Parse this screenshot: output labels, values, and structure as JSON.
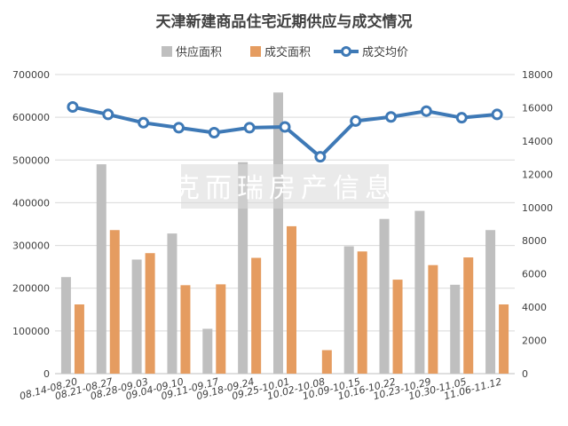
{
  "chart_data": {
    "type": "bar",
    "title": "天津新建商品住宅近期供应与成交情况",
    "categories": [
      "08.14-08.20",
      "08.21-08.27",
      "08.28-09.03",
      "09.04-09.10",
      "09.11-09.17",
      "09.18-09.24",
      "09.25-10.01",
      "10.02-10.08",
      "10.09-10.15",
      "10.16-10.22",
      "10.23-10.29",
      "10.30-11.05",
      "11.06-11.12"
    ],
    "series": [
      {
        "name": "供应面积",
        "type": "bar",
        "axis": "left",
        "color": "#bfbfbf",
        "values": [
          226000,
          490000,
          267000,
          328000,
          105000,
          495000,
          658000,
          0,
          298000,
          362000,
          381000,
          208000,
          336000
        ]
      },
      {
        "name": "成交面积",
        "type": "bar",
        "axis": "left",
        "color": "#e59c60",
        "values": [
          162000,
          336000,
          282000,
          207000,
          209000,
          271000,
          345000,
          55000,
          286000,
          220000,
          254000,
          272000,
          162000
        ]
      },
      {
        "name": "成交均价",
        "type": "line",
        "axis": "right",
        "color": "#3e79b6",
        "values": [
          16050,
          15600,
          15100,
          14800,
          14500,
          14800,
          14850,
          13050,
          15200,
          15450,
          15800,
          15400,
          15600
        ]
      }
    ],
    "y_left": {
      "min": 0,
      "max": 700000,
      "step": 100000,
      "ticks": [
        "0",
        "100000",
        "200000",
        "300000",
        "400000",
        "500000",
        "600000",
        "700000"
      ]
    },
    "y_right": {
      "min": 0,
      "max": 18000,
      "step": 2000,
      "ticks": [
        "0",
        "2000",
        "4000",
        "6000",
        "8000",
        "10000",
        "12000",
        "14000",
        "16000",
        "18000"
      ]
    },
    "grid": true,
    "legend_position": "top",
    "watermark": "克而瑞房产信息"
  }
}
